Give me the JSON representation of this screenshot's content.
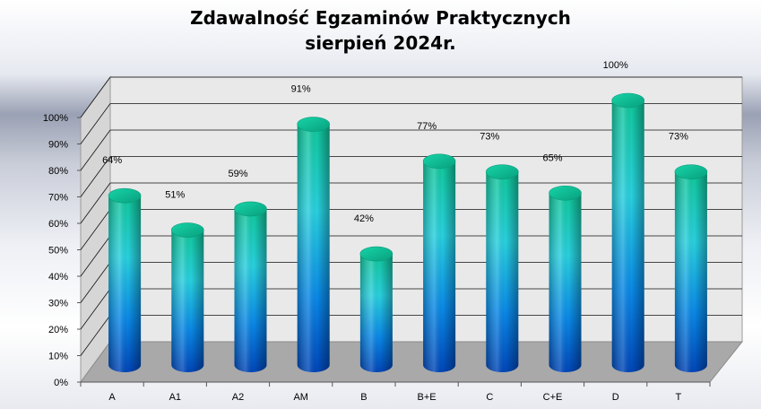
{
  "chart_data": {
    "type": "bar",
    "title": "Zdawalność Egzaminów Praktycznych",
    "subtitle": "sierpień 2024r.",
    "categories": [
      "A",
      "A1",
      "A2",
      "AM",
      "B",
      "B+E",
      "C",
      "C+E",
      "D",
      "T"
    ],
    "values": [
      64,
      51,
      59,
      91,
      42,
      77,
      73,
      65,
      100,
      73
    ],
    "data_labels": [
      "64%",
      "51%",
      "59%",
      "91%",
      "42%",
      "77%",
      "73%",
      "65%",
      "100%",
      "73%"
    ],
    "y_ticks": [
      "0%",
      "10%",
      "20%",
      "30%",
      "40%",
      "50%",
      "60%",
      "70%",
      "80%",
      "90%",
      "100%"
    ],
    "ylim": [
      0,
      100
    ],
    "grid": true,
    "legend": "none",
    "style": "3d-cylinder",
    "colors": {
      "bar_top": "#0fbf9a",
      "bar_mid": "#20c8d8",
      "bar_bottom": "#0050c8",
      "wall": "#e8e8e8",
      "floor": "#a8a8a8",
      "grid": "#000000"
    }
  }
}
